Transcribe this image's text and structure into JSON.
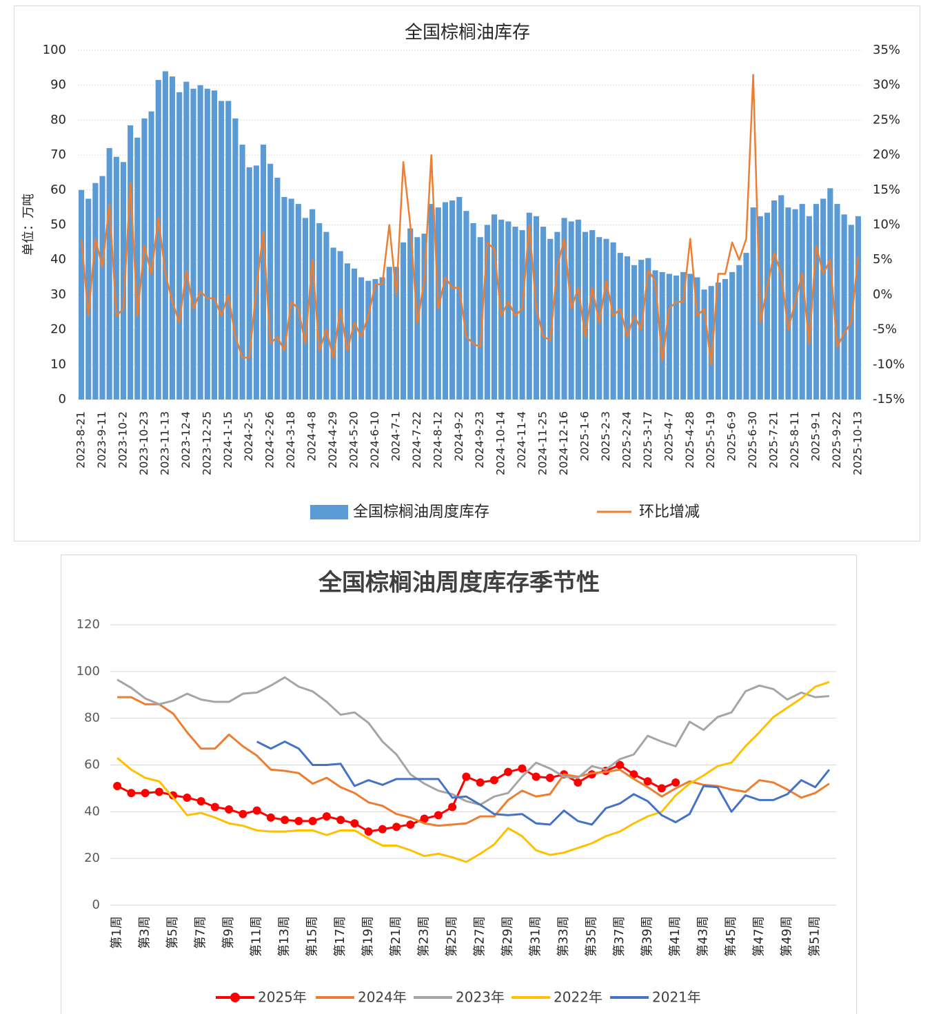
{
  "chart_data": [
    {
      "type": "combo",
      "title": "全国棕榈油库存",
      "y_label": "单位：万吨",
      "categories": [
        "2023-8-21",
        null,
        null,
        "2023-9-11",
        null,
        null,
        "2023-10-2",
        null,
        null,
        "2023-10-23",
        null,
        null,
        "2023-11-13",
        null,
        null,
        "2023-12-4",
        null,
        null,
        "2023-12-25",
        null,
        null,
        "2024-1-15",
        null,
        null,
        "2024-2-5",
        null,
        null,
        "2024-2-26",
        null,
        null,
        "2024-3-18",
        null,
        null,
        "2024-4-8",
        null,
        null,
        "2024-4-29",
        null,
        null,
        "2024-5-20",
        null,
        null,
        "2024-6-10",
        null,
        null,
        "2024-7-1",
        null,
        null,
        "2024-7-22",
        null,
        null,
        "2024-8-12",
        null,
        null,
        "2024-9-2",
        null,
        null,
        "2024-9-23",
        null,
        null,
        "2024-10-14",
        null,
        null,
        "2024-11-4",
        null,
        null,
        "2024-11-25",
        null,
        null,
        "2024-12-16",
        null,
        null,
        "2025-1-6",
        null,
        null,
        "2025-2-3",
        null,
        null,
        "2025-2-24",
        null,
        null,
        "2025-3-17",
        null,
        null,
        "2025-4-7",
        null,
        null,
        "2025-4-28",
        null,
        null,
        "2025-5-19",
        null,
        null,
        "2025-6-9",
        null,
        null,
        "2025-6-30",
        null,
        null,
        "2025-7-21",
        null,
        null,
        "2025-8-11",
        null,
        null,
        "2025-9-1",
        null,
        null,
        "2025-9-22",
        null,
        null,
        "2025-10-13"
      ],
      "series": [
        {
          "name": "全国棕榈油周度库存",
          "type": "bar",
          "color": "#5b9bd5",
          "axis": "y",
          "values": [
            60,
            57.5,
            62,
            64,
            72,
            69.5,
            68,
            78.5,
            75,
            80.5,
            82.5,
            91.5,
            94,
            92.5,
            88,
            91,
            89,
            90,
            89,
            88.5,
            85.5,
            85.5,
            80.5,
            73,
            66.5,
            67,
            73,
            67.5,
            63.5,
            58,
            57.5,
            56,
            52,
            54.5,
            50.5,
            48,
            43.5,
            42.5,
            39,
            37.5,
            35,
            34,
            34.5,
            35,
            38,
            38,
            45,
            49,
            46.5,
            47.5,
            56,
            55,
            56.5,
            57,
            58,
            54,
            50.5,
            46.5,
            50,
            53,
            51.5,
            51,
            49.5,
            48.5,
            53.5,
            52.5,
            49.5,
            46,
            48,
            52,
            51,
            51.5,
            48,
            48.5,
            46.5,
            46,
            45,
            42,
            41,
            38.5,
            40,
            40.5,
            37,
            36.5,
            36,
            35.5,
            36.5,
            36,
            35,
            31.5,
            32.5,
            33.5,
            34.5,
            36.5,
            38.5,
            42,
            55,
            52.5,
            53.5,
            57,
            58.5,
            55,
            54.5,
            56,
            52.5,
            56,
            57.5,
            60.5,
            56,
            53,
            50,
            52.5
          ]
        },
        {
          "name": "环比增减",
          "type": "line",
          "color": "#ed7d31",
          "axis": "y2",
          "values": [
            8,
            -3,
            8,
            4,
            13,
            -3,
            -2,
            16,
            -3,
            7,
            3,
            11,
            3,
            -1,
            -4,
            3.5,
            -2,
            0.5,
            -0.5,
            -0.5,
            -3,
            0,
            -6,
            -9,
            -9,
            1,
            9,
            -7,
            -6,
            -8,
            -1,
            -2,
            -7,
            5,
            -8,
            -5,
            -9,
            -2,
            -8,
            -4,
            -6,
            -3,
            1.5,
            1.5,
            10,
            0,
            19,
            10,
            -4,
            2,
            20,
            -2,
            2.5,
            1,
            1,
            -6,
            -7,
            -7.5,
            7.5,
            6.5,
            -3,
            -1,
            -3,
            -2,
            10,
            -2,
            -6,
            -6.5,
            4,
            8,
            -2,
            1,
            -6,
            1,
            -4,
            2,
            -3,
            -2,
            -6,
            -3,
            -5,
            3.5,
            2,
            -9.5,
            -2,
            -1,
            -1,
            8,
            -3,
            -2,
            -10,
            3,
            3,
            7.5,
            5,
            8,
            31.5,
            -4,
            1,
            6,
            3,
            -5,
            -1,
            3,
            -7,
            7,
            3,
            5,
            -7.5,
            -5.5,
            -4,
            5.5
          ]
        }
      ],
      "ylim": [
        0,
        100
      ],
      "yticks": [
        0,
        10,
        20,
        30,
        40,
        50,
        60,
        70,
        80,
        90,
        100
      ],
      "y2lim": [
        -15,
        35
      ],
      "y2ticks": [
        {
          "value": -15,
          "label": "-15%"
        },
        {
          "value": -10,
          "label": "-10%"
        },
        {
          "value": -5,
          "label": "-5%"
        },
        {
          "value": 0,
          "label": "0%"
        },
        {
          "value": 5,
          "label": "5%"
        },
        {
          "value": 10,
          "label": "10%"
        },
        {
          "value": 15,
          "label": "15%"
        },
        {
          "value": 20,
          "label": "20%"
        },
        {
          "value": 25,
          "label": "25%"
        },
        {
          "value": 30,
          "label": "30%"
        },
        {
          "value": 35,
          "label": "35%"
        }
      ],
      "grid": true,
      "legend": "bottom"
    },
    {
      "type": "line",
      "title": "全国棕榈油周度库存季节性",
      "categories": [
        "第1周",
        null,
        "第3周",
        null,
        "第5周",
        null,
        "第7周",
        null,
        "第9周",
        null,
        "第11周",
        null,
        "第13周",
        null,
        "第15周",
        null,
        "第17周",
        null,
        "第19周",
        null,
        "第21周",
        null,
        "第23周",
        null,
        "第25周",
        null,
        "第27周",
        null,
        "第29周",
        null,
        "第31周",
        null,
        "第33周",
        null,
        "第35周",
        null,
        "第37周",
        null,
        "第39周",
        null,
        "第41周",
        null,
        "第43周",
        null,
        "第45周",
        null,
        "第47周",
        null,
        "第49周",
        null,
        "第51周",
        null
      ],
      "series": [
        {
          "name": "2025年",
          "color": "#ff0000",
          "marker": true,
          "values": [
            51,
            48,
            48,
            48.5,
            47,
            46,
            44.5,
            42,
            41,
            39,
            40.5,
            37.5,
            36.5,
            36,
            36,
            38,
            36.5,
            35,
            31.5,
            32.5,
            33.5,
            34.5,
            37,
            38.5,
            42,
            55,
            52.5,
            53.5,
            57,
            58.5,
            55,
            54.5,
            56,
            52.5,
            56,
            57.5,
            60,
            56,
            53,
            50,
            52.5,
            null,
            null,
            null,
            null,
            null,
            null,
            null,
            null,
            null,
            null,
            null
          ]
        },
        {
          "name": "2024年",
          "color": "#ed7d31",
          "marker": false,
          "values": [
            89,
            89,
            86,
            86,
            82,
            74,
            67,
            67,
            73,
            68,
            64,
            58,
            57.5,
            56.5,
            52,
            54.5,
            50.5,
            48,
            44,
            42.5,
            39,
            37.5,
            35,
            34,
            34.5,
            35,
            38,
            38,
            45,
            49,
            46.5,
            47.5,
            56,
            55,
            56.5,
            57,
            58,
            54,
            50.5,
            46.5,
            50,
            53,
            51.5,
            51,
            49.5,
            48.5,
            53.5,
            52.5,
            49.5,
            46,
            48,
            52
          ]
        },
        {
          "name": "2023年",
          "color": "#a5a5a5",
          "marker": false,
          "values": [
            96.5,
            93,
            88.5,
            86,
            87.5,
            90.5,
            88,
            87,
            87,
            90.5,
            91,
            94,
            97.5,
            93.5,
            91.5,
            87,
            81.5,
            82.5,
            78,
            70,
            64.5,
            56,
            52,
            49,
            47.5,
            44.5,
            43,
            46.5,
            48,
            55,
            61,
            58.5,
            55,
            54.5,
            59.5,
            58,
            62.5,
            64.5,
            72.5,
            70,
            68,
            78.5,
            75,
            80.5,
            82.5,
            91.5,
            94,
            92.5,
            88,
            91,
            89,
            89.5
          ]
        },
        {
          "name": "2022年",
          "color": "#ffc000",
          "marker": false,
          "values": [
            63,
            58,
            54.5,
            53,
            46,
            38.5,
            39.5,
            37.5,
            35,
            34,
            32,
            31.5,
            31.5,
            32,
            32,
            30,
            32,
            32,
            28.5,
            25.5,
            25.5,
            23.5,
            21,
            22,
            20.5,
            18.5,
            22,
            26,
            33,
            29.5,
            23.5,
            21.5,
            22.5,
            24.5,
            26.5,
            29.5,
            31.5,
            35,
            38,
            40,
            47,
            52,
            55.5,
            59.5,
            61,
            68,
            74,
            80.5,
            84.5,
            88.5,
            93.5,
            95.5
          ]
        },
        {
          "name": "2021年",
          "color": "#4472c4",
          "marker": false,
          "values": [
            null,
            null,
            null,
            null,
            null,
            null,
            null,
            null,
            null,
            null,
            70,
            67,
            70,
            67,
            60,
            60,
            60.5,
            51,
            53.5,
            51.5,
            54,
            54,
            54,
            54,
            46,
            46.5,
            43,
            39,
            38.5,
            39,
            35,
            34.5,
            40.5,
            36,
            34.5,
            41.5,
            43.5,
            47.5,
            44.5,
            38.5,
            35.5,
            39,
            51,
            50.5,
            40,
            47,
            45,
            45,
            47.5,
            53.5,
            50.5,
            58
          ]
        }
      ],
      "ylim": [
        0,
        120
      ],
      "yticks": [
        0,
        20,
        40,
        60,
        80,
        100,
        120
      ],
      "grid": true,
      "legend": "bottom"
    }
  ]
}
